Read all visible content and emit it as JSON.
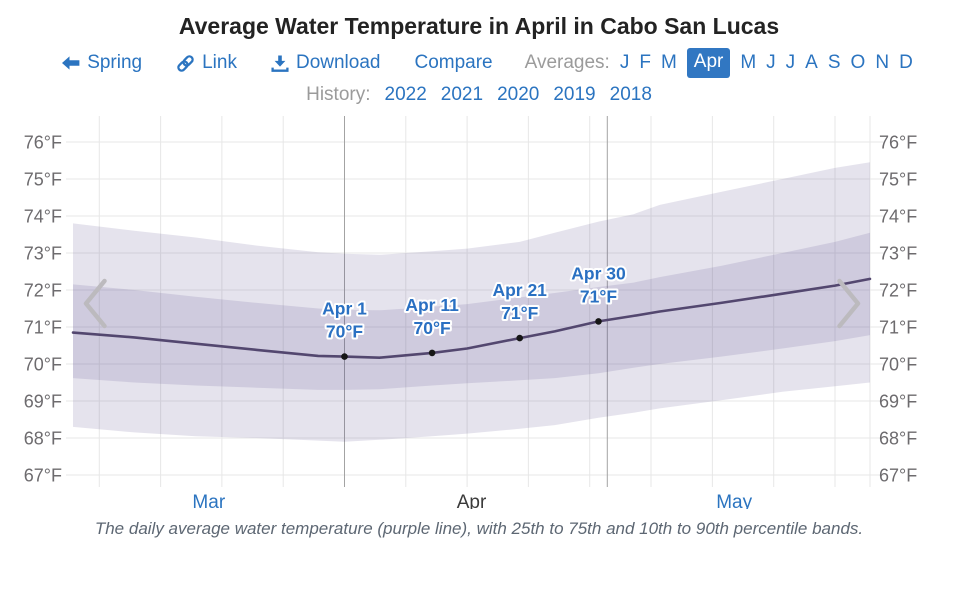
{
  "title": "Average Water Temperature in April in Cabo San Lucas",
  "toolbar": {
    "back": {
      "label": "Spring",
      "icon": "arrow-left-icon"
    },
    "link": {
      "label": "Link",
      "icon": "link-icon"
    },
    "download": {
      "label": "Download",
      "icon": "download-icon"
    },
    "compare": {
      "label": "Compare"
    },
    "averages": {
      "label": "Averages:",
      "months": [
        "J",
        "F",
        "M",
        "Apr",
        "M",
        "J",
        "J",
        "A",
        "S",
        "O",
        "N",
        "D"
      ],
      "selected_index": 3
    }
  },
  "history": {
    "label": "History:",
    "years": [
      "2022",
      "2021",
      "2020",
      "2019",
      "2018"
    ]
  },
  "caption": "The daily average water temperature (purple line), with 25th to 75th and 10th to 90th percentile bands.",
  "colors": {
    "accent_blue": "#2b74c0",
    "selected_month_bg": "#3177c2",
    "muted_label": "#9b9b9b",
    "title_text": "#232323",
    "tick_label": "#6d6b6e",
    "gridline": "#e7e7e7",
    "month_gridline": "#a3a3a3",
    "band_fill": "rgba(93,78,142,0.16)",
    "mean_line": "#53476f",
    "point_dot": "#161616",
    "point_label": "#2a70c2",
    "caption_text": "#5d6773",
    "chevron": "#bcbabe",
    "x_label_current": "#3a3a3a"
  },
  "chart_data": {
    "type": "line",
    "title": "Average Water Temperature in April in Cabo San Lucas",
    "x_unit": "days since Mar 1",
    "x_range": [
      0,
      91
    ],
    "ylim": [
      66.8,
      76.7
    ],
    "grid": true,
    "y_axis": {
      "ticks": [
        {
          "value": 76,
          "label": "76°F"
        },
        {
          "value": 75,
          "label": "75°F"
        },
        {
          "value": 74,
          "label": "74°F"
        },
        {
          "value": 73,
          "label": "73°F"
        },
        {
          "value": 72,
          "label": "72°F"
        },
        {
          "value": 71,
          "label": "71°F"
        },
        {
          "value": 70,
          "label": "70°F"
        },
        {
          "value": 69,
          "label": "69°F"
        },
        {
          "value": 68,
          "label": "68°F"
        },
        {
          "value": 67,
          "label": "67°F"
        }
      ]
    },
    "x_axis": {
      "month_labels": [
        {
          "label": "Mar",
          "day": 15.5,
          "is_link": true
        },
        {
          "label": "Apr",
          "day": 45.5,
          "is_link": false
        },
        {
          "label": "May",
          "day": 75.5,
          "is_link": true
        }
      ],
      "week_gridline_days": [
        3,
        10,
        17,
        24,
        31,
        38,
        45,
        52,
        59,
        66,
        73,
        80,
        87
      ],
      "month_boundary_days": [
        31,
        61
      ]
    },
    "days": [
      0,
      7,
      14,
      21,
      28,
      31,
      35,
      41,
      45,
      51,
      55,
      60,
      64,
      67,
      74,
      81,
      87,
      91
    ],
    "series": [
      {
        "name": "Daily average water temperature",
        "type": "line",
        "color": "#53476f",
        "values": [
          70.85,
          70.72,
          70.55,
          70.38,
          70.22,
          70.2,
          70.17,
          70.3,
          70.42,
          70.7,
          70.88,
          71.15,
          71.3,
          71.42,
          71.65,
          71.9,
          72.12,
          72.3
        ]
      },
      {
        "name": "25th to 75th percentile band",
        "type": "band",
        "lower": [
          69.62,
          69.5,
          69.42,
          69.36,
          69.3,
          69.3,
          69.32,
          69.42,
          69.48,
          69.56,
          69.62,
          69.75,
          69.9,
          70.0,
          70.2,
          70.42,
          70.62,
          70.78
        ],
        "upper": [
          72.15,
          72.0,
          71.82,
          71.65,
          71.5,
          71.46,
          71.45,
          71.55,
          71.62,
          71.8,
          71.92,
          72.08,
          72.2,
          72.35,
          72.65,
          73.0,
          73.3,
          73.55
        ]
      },
      {
        "name": "10th to 90th percentile band",
        "type": "band",
        "lower": [
          68.3,
          68.15,
          68.05,
          68.0,
          67.93,
          67.9,
          67.95,
          68.05,
          68.12,
          68.25,
          68.35,
          68.55,
          68.68,
          68.8,
          69.02,
          69.25,
          69.4,
          69.5
        ],
        "upper": [
          73.8,
          73.6,
          73.42,
          73.2,
          73.02,
          72.98,
          72.95,
          73.05,
          73.12,
          73.3,
          73.55,
          73.85,
          74.05,
          74.3,
          74.65,
          75.0,
          75.3,
          75.45
        ]
      }
    ],
    "points": [
      {
        "day": 31,
        "value": 70.2,
        "label_lines": [
          "Apr 1",
          "70°F"
        ]
      },
      {
        "day": 41,
        "value": 70.3,
        "label_lines": [
          "Apr 11",
          "70°F"
        ]
      },
      {
        "day": 51,
        "value": 70.7,
        "label_lines": [
          "Apr 21",
          "71°F"
        ]
      },
      {
        "day": 60,
        "value": 71.15,
        "label_lines": [
          "Apr 30",
          "71°F"
        ]
      }
    ]
  }
}
